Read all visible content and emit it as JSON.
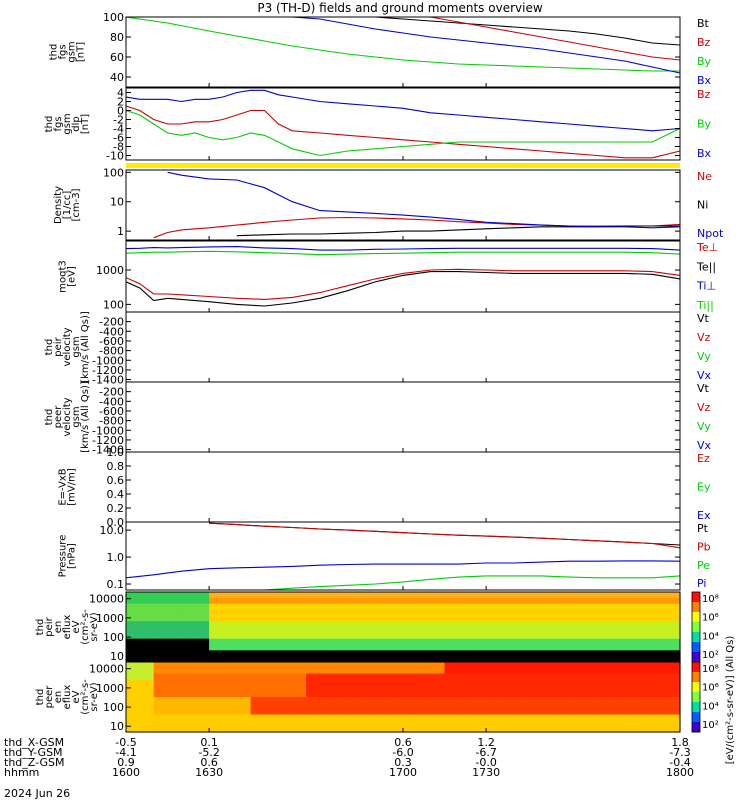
{
  "title": "P3 (TH-D) fields and ground moments overview",
  "date_label": "2024 Jun 26",
  "chart_data": [
    {
      "type": "line",
      "ylabel": [
        "thd",
        "fgs",
        "gsm",
        "[nT]"
      ],
      "ylim": [
        30,
        100
      ],
      "yticks": [
        40,
        60,
        80,
        100
      ],
      "legend": [
        "Bt",
        "Bz",
        "By",
        "Bx"
      ],
      "x": [
        1600,
        1615,
        1630,
        1640,
        1650,
        1660,
        1670,
        1680,
        1690,
        1700,
        1710,
        1720,
        1730,
        1740,
        1750,
        1760,
        1770,
        1780,
        1790,
        1800
      ],
      "series": [
        {
          "name": "Bt",
          "color": "#000000",
          "values": [
            null,
            null,
            null,
            null,
            null,
            null,
            null,
            103,
            101,
            98,
            96,
            94,
            92,
            90,
            88,
            86,
            83,
            79,
            74,
            72
          ]
        },
        {
          "name": "Bz",
          "color": "#d00000",
          "values": [
            null,
            null,
            null,
            null,
            null,
            null,
            null,
            null,
            null,
            null,
            100,
            95,
            90,
            85,
            80,
            75,
            70,
            65,
            60,
            57
          ]
        },
        {
          "name": "By",
          "color": "#00d000",
          "values": [
            103,
            94,
            86,
            81,
            76,
            71,
            67,
            63,
            60,
            57,
            55,
            53,
            52,
            51,
            50,
            49,
            48,
            47,
            46,
            46
          ]
        },
        {
          "name": "Bx",
          "color": "#0000d8",
          "values": [
            null,
            null,
            null,
            null,
            null,
            103,
            98,
            93,
            88,
            84,
            80,
            77,
            74,
            71,
            68,
            64,
            60,
            56,
            50,
            44
          ]
        }
      ]
    },
    {
      "type": "line",
      "ylabel": [
        "thd",
        "fgs",
        "gsm",
        "dlp",
        "[nT]"
      ],
      "ylim": [
        -11,
        5
      ],
      "yticks": [
        4,
        2,
        0,
        -2,
        -4,
        -6,
        -8,
        -10
      ],
      "legend": [
        "Bz",
        "By",
        "Bx"
      ],
      "x": [
        1600,
        1605,
        1610,
        1615,
        1620,
        1625,
        1630,
        1635,
        1640,
        1645,
        1650,
        1655,
        1660,
        1670,
        1680,
        1690,
        1700,
        1710,
        1720,
        1730,
        1740,
        1750,
        1760,
        1770,
        1780,
        1790,
        1800
      ],
      "series": [
        {
          "name": "Bz",
          "color": "#d00000",
          "values": [
            1,
            0,
            -2,
            -3,
            -3,
            -2.5,
            -2.5,
            -2,
            -1,
            0,
            0,
            -3,
            -4.5,
            -5,
            -5.5,
            -6,
            -6.5,
            -7,
            -7.5,
            -8,
            -8.5,
            -9,
            -9.5,
            -10,
            -10.5,
            -10.5,
            -9
          ]
        },
        {
          "name": "By",
          "color": "#00d000",
          "values": [
            0,
            -1,
            -3,
            -5,
            -5.5,
            -5,
            -6,
            -6.5,
            -6,
            -5,
            -5.5,
            -7,
            -8.5,
            -10,
            -9,
            -8.5,
            -8,
            -7.5,
            -7,
            -7,
            -7,
            -7,
            -7,
            -7,
            -7,
            -7,
            -4
          ]
        },
        {
          "name": "Bx",
          "color": "#0000d8",
          "values": [
            3,
            2.5,
            2.5,
            2.5,
            2,
            2.5,
            2.5,
            3,
            4,
            4.5,
            4.5,
            3.5,
            3,
            2,
            1.5,
            1,
            0.5,
            -0.5,
            -1,
            -1.5,
            -2,
            -2.5,
            -3,
            -3.5,
            -4,
            -4.5,
            -4
          ]
        }
      ]
    },
    {
      "type": "line",
      "scale": "log",
      "ylabel": [
        "Density",
        "[1/cc]",
        "[cm-3]"
      ],
      "ylim": [
        0.5,
        120
      ],
      "yticks": [
        1,
        10,
        100
      ],
      "legend": [
        "Ne",
        "Ni",
        "Npot"
      ],
      "x": [
        1600,
        1605,
        1610,
        1615,
        1620,
        1630,
        1640,
        1650,
        1660,
        1670,
        1680,
        1690,
        1700,
        1710,
        1720,
        1730,
        1740,
        1750,
        1760,
        1770,
        1780,
        1790,
        1800
      ],
      "series": [
        {
          "name": "Ne",
          "color": "#d00000",
          "values": [
            null,
            null,
            0.6,
            0.9,
            1.1,
            1.3,
            1.6,
            2.0,
            2.4,
            2.8,
            2.9,
            2.8,
            2.6,
            2.4,
            2.1,
            1.9,
            1.7,
            1.6,
            1.5,
            1.5,
            1.5,
            1.5,
            1.7
          ]
        },
        {
          "name": "Ni",
          "color": "#000000",
          "values": [
            null,
            null,
            null,
            null,
            null,
            null,
            0.7,
            0.75,
            0.8,
            0.8,
            0.85,
            0.9,
            1.0,
            1.0,
            1.1,
            1.2,
            1.3,
            1.4,
            1.4,
            1.4,
            1.5,
            1.5,
            1.5
          ]
        },
        {
          "name": "Npot",
          "color": "#0000d8",
          "values": [
            null,
            null,
            null,
            100,
            80,
            60,
            55,
            30,
            10,
            5,
            4.5,
            4,
            3.5,
            3,
            2.5,
            2,
            1.8,
            1.6,
            1.5,
            1.4,
            1.4,
            1.3,
            1.4
          ]
        }
      ]
    },
    {
      "type": "line",
      "scale": "log",
      "ylabel": [
        "moqt3",
        "[eV]"
      ],
      "ylim": [
        60,
        7000
      ],
      "yticks": [
        100,
        1000
      ],
      "legend": [
        "Te⊥",
        "Te||",
        "Ti⊥",
        "Ti||"
      ],
      "x": [
        1600,
        1605,
        1610,
        1615,
        1620,
        1630,
        1640,
        1650,
        1660,
        1670,
        1680,
        1690,
        1700,
        1710,
        1720,
        1730,
        1740,
        1750,
        1760,
        1770,
        1780,
        1790,
        1800
      ],
      "series": [
        {
          "name": "Te⊥",
          "color": "#d00000",
          "values": [
            600,
            400,
            200,
            200,
            190,
            170,
            150,
            140,
            160,
            220,
            350,
            550,
            800,
            1000,
            1050,
            1000,
            950,
            950,
            950,
            950,
            950,
            900,
            700
          ]
        },
        {
          "name": "Te||",
          "color": "#000000",
          "values": [
            450,
            300,
            130,
            150,
            140,
            120,
            100,
            90,
            110,
            150,
            250,
            450,
            700,
            900,
            900,
            850,
            800,
            800,
            800,
            800,
            800,
            750,
            550
          ]
        },
        {
          "name": "Ti⊥",
          "color": "#0000d8",
          "values": [
            4200,
            4300,
            4500,
            4400,
            4500,
            4700,
            4800,
            4400,
            4200,
            3800,
            3800,
            4000,
            4100,
            4200,
            4300,
            4300,
            4300,
            4300,
            4300,
            4300,
            4300,
            4200,
            3800
          ]
        },
        {
          "name": "Ti||",
          "color": "#00d000",
          "values": [
            3100,
            3200,
            3300,
            3300,
            3400,
            3500,
            3400,
            3200,
            3000,
            2800,
            2900,
            3000,
            3100,
            3200,
            3300,
            3300,
            3300,
            3300,
            3300,
            3300,
            3300,
            3200,
            2900
          ]
        }
      ]
    },
    {
      "type": "line",
      "ylabel": [
        "thd",
        "peir",
        "velocity",
        "gsm",
        "[km/s (All Qs)]"
      ],
      "ylim": [
        -1450,
        0
      ],
      "yticks": [
        -200,
        -400,
        -600,
        -800,
        -1000,
        -1200,
        -1400
      ],
      "legend": [
        "Vt",
        "Vz",
        "Vy",
        "Vx"
      ],
      "x": [],
      "series": []
    },
    {
      "type": "line",
      "ylabel": [
        "thd",
        "peer",
        "velocity",
        "gsm",
        "[km/s (All Qs)]"
      ],
      "ylim": [
        -1450,
        0
      ],
      "yticks": [
        -200,
        -400,
        -600,
        -800,
        -1000,
        -1200,
        -1400
      ],
      "legend": [
        "Vt",
        "Vz",
        "Vy",
        "Vx"
      ],
      "x": [],
      "series": []
    },
    {
      "type": "line",
      "ylabel": [
        "E=-VxB",
        "[mV/m]"
      ],
      "ylim": [
        0,
        1
      ],
      "yticks": [
        0.0,
        0.2,
        0.4,
        0.6,
        0.8,
        1.0
      ],
      "legend": [
        "Ez",
        "Ey",
        "Ex"
      ],
      "x": [],
      "series": []
    },
    {
      "type": "line",
      "scale": "log",
      "ylabel": [
        "Pressure",
        "[nPa]"
      ],
      "ylim": [
        0.06,
        20
      ],
      "yticks": [
        0.1,
        1.0,
        10.0
      ],
      "legend": [
        "Pt",
        "Pb",
        "Pe",
        "Pi"
      ],
      "x": [
        1600,
        1610,
        1620,
        1630,
        1640,
        1650,
        1660,
        1670,
        1680,
        1690,
        1700,
        1710,
        1720,
        1730,
        1740,
        1750,
        1760,
        1770,
        1780,
        1790,
        1800
      ],
      "series": [
        {
          "name": "Pt",
          "color": "#000000",
          "values": [
            null,
            null,
            null,
            18,
            16,
            14,
            12.5,
            11,
            10,
            9,
            8,
            7.2,
            6.5,
            6,
            5.5,
            5,
            4.5,
            4,
            3.6,
            3.2,
            2.8
          ]
        },
        {
          "name": "Pb",
          "color": "#d00000",
          "values": [
            null,
            null,
            null,
            18,
            16,
            14,
            12.5,
            11,
            10,
            9,
            8,
            7.2,
            6.5,
            6,
            5.5,
            5,
            4.5,
            4,
            3.6,
            3.2,
            2.2
          ]
        },
        {
          "name": "Pe",
          "color": "#00d000",
          "values": [
            null,
            null,
            null,
            null,
            null,
            0.06,
            0.07,
            0.08,
            0.09,
            0.1,
            0.12,
            0.15,
            0.18,
            0.2,
            0.2,
            0.2,
            0.18,
            0.17,
            0.17,
            0.17,
            0.2
          ]
        },
        {
          "name": "Pi",
          "color": "#0000d8",
          "values": [
            0.17,
            0.22,
            0.3,
            0.37,
            0.4,
            0.42,
            0.45,
            0.5,
            0.53,
            0.55,
            0.55,
            0.55,
            0.55,
            0.6,
            0.6,
            0.65,
            0.7,
            0.7,
            0.72,
            0.72,
            0.7
          ]
        }
      ]
    },
    {
      "type": "heatmap",
      "ylabel": [
        "thd",
        "peir",
        "en",
        "eflux",
        "eV",
        "(cm²-s-",
        "sr-eV)"
      ],
      "yticks": [
        10,
        100,
        1000,
        10000
      ],
      "colorbar_ticks": [
        "10²",
        "10⁴",
        "10⁶",
        "10⁸"
      ]
    },
    {
      "type": "heatmap",
      "ylabel": [
        "thd",
        "peer",
        "en",
        "eflux",
        "eV",
        "(cm²-s-",
        "sr-eV)"
      ],
      "yticks": [
        10,
        100,
        1000,
        10000
      ],
      "colorbar_ticks": [
        "10²",
        "10⁴",
        "10⁶",
        "10⁸"
      ]
    }
  ],
  "colorbar_label": "[eV/(cm²-s-sr-eV)] (All Qs)",
  "x_axis": {
    "rows": [
      {
        "name": "thd_X-GSM",
        "values": [
          "-0.5",
          "0.1",
          "0.6",
          "1.2",
          "1.8"
        ]
      },
      {
        "name": "thd_Y-GSM",
        "values": [
          "-4.1",
          "-5.2",
          "-6.0",
          "-6.7",
          "-7.3"
        ]
      },
      {
        "name": "thd_Z-GSM",
        "values": [
          "0.9",
          "0.6",
          "0.3",
          "-0.0",
          "-0.4"
        ]
      },
      {
        "name": "hhmm",
        "values": [
          "1600",
          "1630",
          "1700",
          "1730",
          "1800"
        ]
      }
    ],
    "time_ticks": [
      1600,
      1630,
      1700,
      1730,
      1800
    ]
  },
  "colors": {
    "red": "#d00000",
    "green": "#00d000",
    "blue": "#0000d8",
    "yellow": "#ffee00"
  }
}
